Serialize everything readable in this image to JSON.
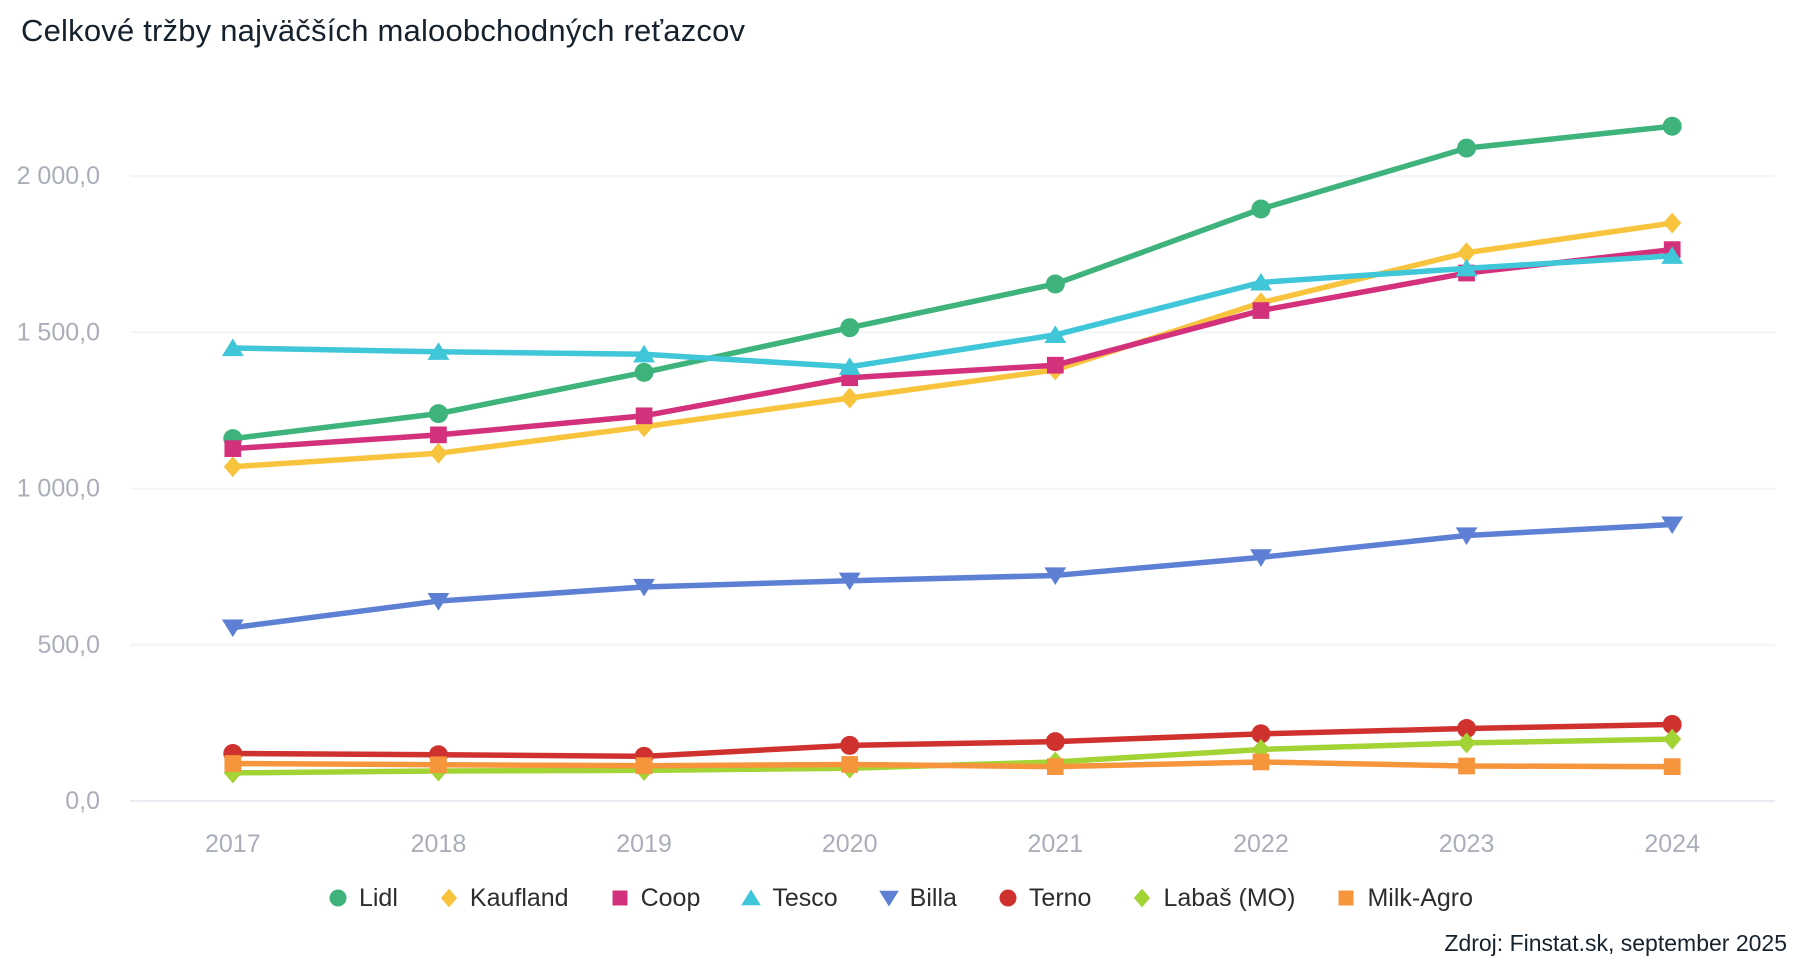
{
  "title": "Celkové tržby najväčších maloobchodných reťazcov",
  "source": "Zdroj: Finstat.sk, september 2025",
  "chart_data": {
    "type": "line",
    "categories": [
      "2017",
      "2018",
      "2019",
      "2020",
      "2021",
      "2022",
      "2023",
      "2024"
    ],
    "series": [
      {
        "name": "Lidl",
        "color": "#3eb37c",
        "symbol": "circle",
        "values": [
          1160,
          1240,
          1372,
          1515,
          1655,
          1895,
          2090,
          2160
        ]
      },
      {
        "name": "Kaufland",
        "color": "#f9c43d",
        "symbol": "diamond",
        "values": [
          1070,
          1113,
          1198,
          1290,
          1380,
          1595,
          1755,
          1850
        ]
      },
      {
        "name": "Coop",
        "color": "#d4317c",
        "symbol": "square",
        "values": [
          1128,
          1172,
          1233,
          1355,
          1395,
          1570,
          1690,
          1765
        ]
      },
      {
        "name": "Tesco",
        "color": "#3fc6d9",
        "symbol": "triangle-up",
        "values": [
          1450,
          1438,
          1430,
          1390,
          1492,
          1660,
          1705,
          1745
        ]
      },
      {
        "name": "Billa",
        "color": "#5e80d4",
        "symbol": "triangle-down",
        "values": [
          555,
          640,
          685,
          705,
          722,
          780,
          850,
          885
        ]
      },
      {
        "name": "Terno",
        "color": "#cf312e",
        "symbol": "circle",
        "values": [
          152,
          148,
          143,
          178,
          190,
          215,
          232,
          245
        ]
      },
      {
        "name": "Labaš (MO)",
        "color": "#a3d335",
        "symbol": "diamond",
        "values": [
          90,
          96,
          98,
          105,
          125,
          165,
          186,
          198
        ]
      },
      {
        "name": "Milk-Agro",
        "color": "#f6953c",
        "symbol": "square",
        "values": [
          120,
          116,
          113,
          117,
          110,
          125,
          112,
          110
        ]
      }
    ],
    "y_axis": {
      "range": [
        0,
        2300
      ],
      "ticks": [
        {
          "value": 0,
          "label": "0,0"
        },
        {
          "value": 500,
          "label": "500,0"
        },
        {
          "value": 1000,
          "label": "1 000,0"
        },
        {
          "value": 1500,
          "label": "1 500,0"
        },
        {
          "value": 2000,
          "label": "2 000,0"
        }
      ]
    },
    "grid": true,
    "legend_position": "bottom"
  }
}
